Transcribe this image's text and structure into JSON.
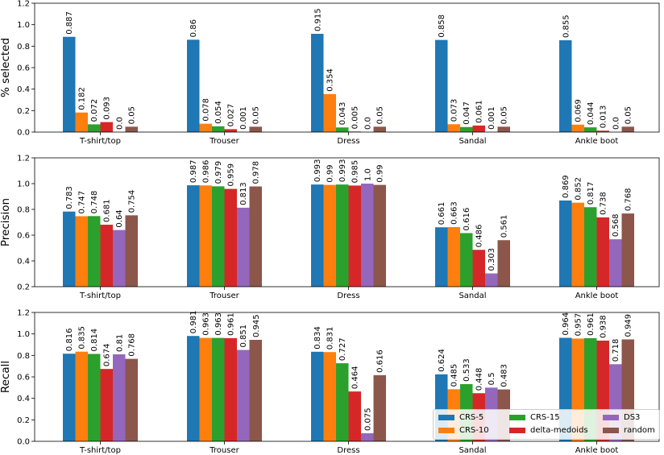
{
  "chart_data": [
    {
      "type": "bar",
      "categories": [
        "T-shirt/top",
        "Trouser",
        "Dress",
        "Sandal",
        "Ankle boot"
      ],
      "ylabel": "% selected",
      "ylim": [
        0,
        1.2
      ],
      "yticks": [
        "0.0",
        "0.2",
        "0.4",
        "0.6",
        "0.8",
        "1.0",
        "1.2"
      ],
      "series": [
        {
          "name": "CRS-5",
          "values": [
            0.887,
            0.86,
            0.915,
            0.858,
            0.855
          ],
          "labels": [
            "0.887",
            "0.86",
            "0.915",
            "0.858",
            "0.855"
          ]
        },
        {
          "name": "CRS-10",
          "values": [
            0.182,
            0.078,
            0.354,
            0.073,
            0.069
          ],
          "labels": [
            "0.182",
            "0.078",
            "0.354",
            "0.073",
            "0.069"
          ]
        },
        {
          "name": "CRS-15",
          "values": [
            0.072,
            0.054,
            0.043,
            0.047,
            0.044
          ],
          "labels": [
            "0.072",
            "0.054",
            "0.043",
            "0.047",
            "0.044"
          ]
        },
        {
          "name": "delta-medoids",
          "values": [
            0.093,
            0.027,
            0.005,
            0.061,
            0.013
          ],
          "labels": [
            "0.093",
            "0.027",
            "0.005",
            "0.061",
            "0.013"
          ]
        },
        {
          "name": "DS3",
          "values": [
            0.0,
            0.001,
            0.0,
            0.001,
            0.0
          ],
          "labels": [
            "0.0",
            "0.001",
            "0.0",
            "0.001",
            "0.0"
          ]
        },
        {
          "name": "random",
          "values": [
            0.05,
            0.05,
            0.05,
            0.05,
            0.05
          ],
          "labels": [
            "0.05",
            "0.05",
            "0.05",
            "0.05",
            "0.05"
          ]
        }
      ]
    },
    {
      "type": "bar",
      "categories": [
        "T-shirt/top",
        "Trouser",
        "Dress",
        "Sandal",
        "Ankle boot"
      ],
      "ylabel": "Precision",
      "ylim": [
        0.2,
        1.2
      ],
      "yticks": [
        "0.2",
        "0.4",
        "0.6",
        "0.8",
        "1.0",
        "1.2"
      ],
      "series": [
        {
          "name": "CRS-5",
          "values": [
            0.783,
            0.987,
            0.993,
            0.661,
            0.869
          ],
          "labels": [
            "0.783",
            "0.987",
            "0.993",
            "0.661",
            "0.869"
          ]
        },
        {
          "name": "CRS-10",
          "values": [
            0.747,
            0.986,
            0.99,
            0.663,
            0.852
          ],
          "labels": [
            "0.747",
            "0.986",
            "0.99",
            "0.663",
            "0.852"
          ]
        },
        {
          "name": "CRS-15",
          "values": [
            0.748,
            0.979,
            0.993,
            0.616,
            0.817
          ],
          "labels": [
            "0.748",
            "0.979",
            "0.993",
            "0.616",
            "0.817"
          ]
        },
        {
          "name": "delta-medoids",
          "values": [
            0.681,
            0.959,
            0.985,
            0.486,
            0.738
          ],
          "labels": [
            "0.681",
            "0.959",
            "0.985",
            "0.486",
            "0.738"
          ]
        },
        {
          "name": "DS3",
          "values": [
            0.64,
            0.813,
            1.0,
            0.303,
            0.568
          ],
          "labels": [
            "0.64",
            "0.813",
            "1.0",
            "0.303",
            "0.568"
          ]
        },
        {
          "name": "random",
          "values": [
            0.754,
            0.978,
            0.99,
            0.561,
            0.768
          ],
          "labels": [
            "0.754",
            "0.978",
            "0.99",
            "0.561",
            "0.768"
          ]
        }
      ]
    },
    {
      "type": "bar",
      "categories": [
        "T-shirt/top",
        "Trouser",
        "Dress",
        "Sandal",
        "Ankle boot"
      ],
      "ylabel": "Recall",
      "ylim": [
        0,
        1.2
      ],
      "yticks": [
        "0.0",
        "0.2",
        "0.4",
        "0.6",
        "0.8",
        "1.0",
        "1.2"
      ],
      "series": [
        {
          "name": "CRS-5",
          "values": [
            0.816,
            0.981,
            0.834,
            0.624,
            0.964
          ],
          "labels": [
            "0.816",
            "0.981",
            "0.834",
            "0.624",
            "0.964"
          ]
        },
        {
          "name": "CRS-10",
          "values": [
            0.835,
            0.963,
            0.831,
            0.485,
            0.957
          ],
          "labels": [
            "0.835",
            "0.963",
            "0.831",
            "0.485",
            "0.957"
          ]
        },
        {
          "name": "CRS-15",
          "values": [
            0.814,
            0.963,
            0.727,
            0.533,
            0.961
          ],
          "labels": [
            "0.814",
            "0.963",
            "0.727",
            "0.533",
            "0.961"
          ]
        },
        {
          "name": "delta-medoids",
          "values": [
            0.674,
            0.961,
            0.464,
            0.448,
            0.938
          ],
          "labels": [
            "0.674",
            "0.961",
            "0.464",
            "0.448",
            "0.938"
          ]
        },
        {
          "name": "DS3",
          "values": [
            0.81,
            0.851,
            0.075,
            0.5,
            0.718
          ],
          "labels": [
            "0.81",
            "0.851",
            "0.075",
            "0.5",
            "0.718"
          ]
        },
        {
          "name": "random",
          "values": [
            0.768,
            0.945,
            0.616,
            0.483,
            0.949
          ],
          "labels": [
            "0.768",
            "0.945",
            "0.616",
            "0.483",
            "0.949"
          ]
        }
      ],
      "legend": {
        "placement": "lower-right",
        "entries": [
          "CRS-5",
          "CRS-15",
          "DS3",
          "CRS-10",
          "delta-medoids",
          "random"
        ]
      }
    }
  ],
  "colors": {
    "CRS-5": "#1f77b4",
    "CRS-10": "#ff7f0e",
    "CRS-15": "#2ca02c",
    "delta-medoids": "#d62728",
    "DS3": "#9467bd",
    "random": "#8c564b"
  }
}
